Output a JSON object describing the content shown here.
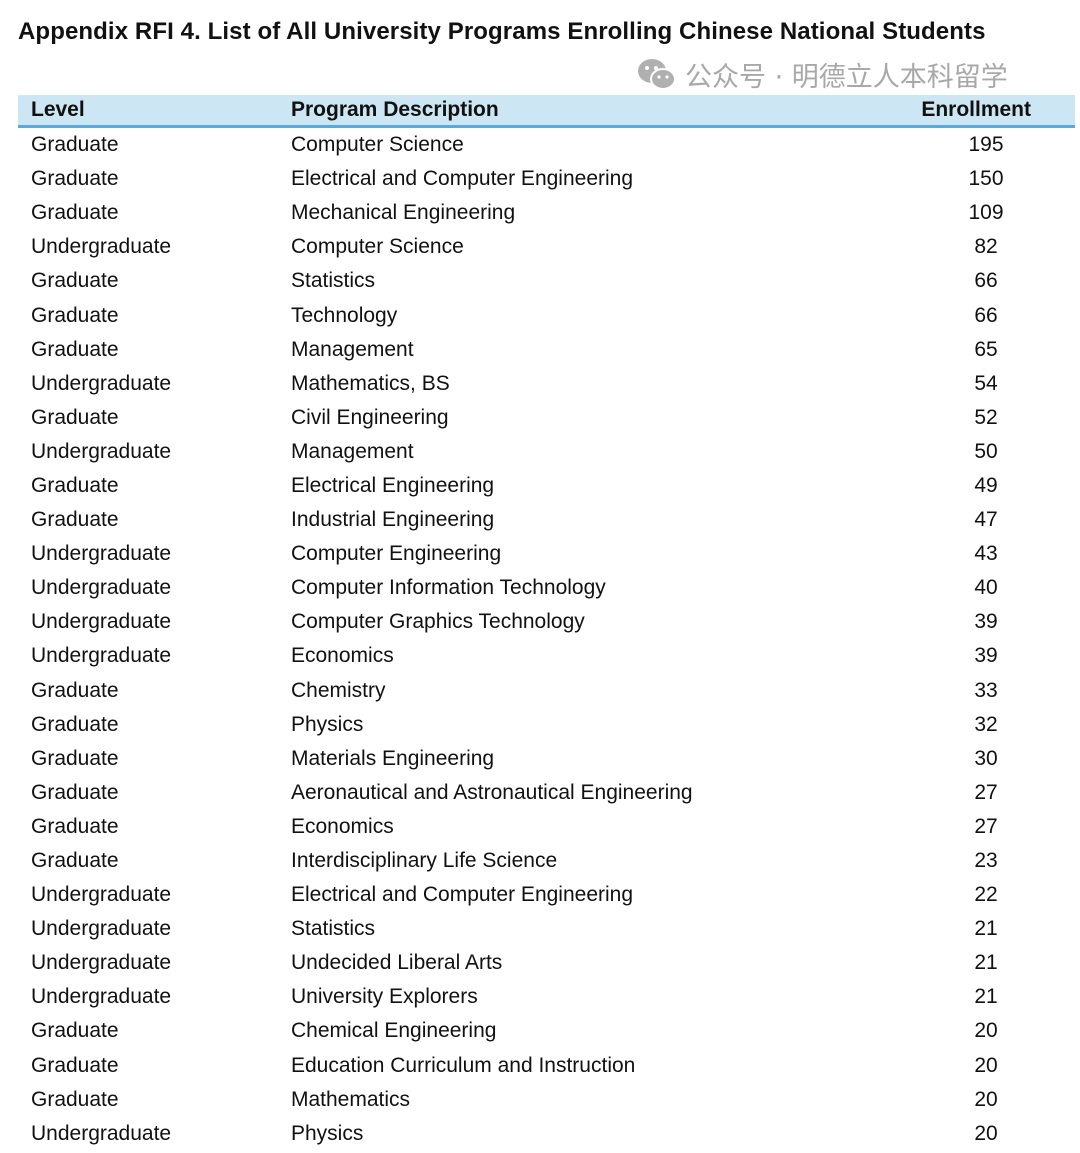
{
  "title": "Appendix RFI 4. List of All University Programs Enrolling Chinese National Students",
  "table": {
    "headers": [
      "Level",
      "Program Description",
      "Enrollment"
    ],
    "rows": [
      [
        "Graduate",
        "Computer Science",
        "195"
      ],
      [
        "Graduate",
        "Electrical and Computer Engineering",
        "150"
      ],
      [
        "Graduate",
        "Mechanical Engineering",
        "109"
      ],
      [
        "Undergraduate",
        "Computer Science",
        "82"
      ],
      [
        "Graduate",
        "Statistics",
        "66"
      ],
      [
        "Graduate",
        "Technology",
        "66"
      ],
      [
        "Graduate",
        "Management",
        "65"
      ],
      [
        "Undergraduate",
        "Mathematics, BS",
        "54"
      ],
      [
        "Graduate",
        "Civil Engineering",
        "52"
      ],
      [
        "Undergraduate",
        "Management",
        "50"
      ],
      [
        "Graduate",
        "Electrical Engineering",
        "49"
      ],
      [
        "Graduate",
        "Industrial Engineering",
        "47"
      ],
      [
        "Undergraduate",
        "Computer Engineering",
        "43"
      ],
      [
        "Undergraduate",
        "Computer Information Technology",
        "40"
      ],
      [
        "Undergraduate",
        "Computer Graphics Technology",
        "39"
      ],
      [
        "Undergraduate",
        "Economics",
        "39"
      ],
      [
        "Graduate",
        "Chemistry",
        "33"
      ],
      [
        "Graduate",
        "Physics",
        "32"
      ],
      [
        "Graduate",
        "Materials Engineering",
        "30"
      ],
      [
        "Graduate",
        "Aeronautical and Astronautical Engineering",
        "27"
      ],
      [
        "Graduate",
        "Economics",
        "27"
      ],
      [
        "Graduate",
        "Interdisciplinary Life Science",
        "23"
      ],
      [
        "Undergraduate",
        "Electrical and Computer Engineering",
        "22"
      ],
      [
        "Undergraduate",
        "Statistics",
        "21"
      ],
      [
        "Undergraduate",
        "Undecided Liberal Arts",
        "21"
      ],
      [
        "Undergraduate",
        "University Explorers",
        "21"
      ],
      [
        "Graduate",
        "Chemical Engineering",
        "20"
      ],
      [
        "Graduate",
        "Education Curriculum and Instruction",
        "20"
      ],
      [
        "Graduate",
        "Mathematics",
        "20"
      ],
      [
        "Undergraduate",
        "Physics",
        "20"
      ]
    ]
  },
  "watermark": {
    "icon": "wechat-icon",
    "text": "公众号 · 明德立人本科留学"
  },
  "colors": {
    "header_bg": "#cce6f4",
    "header_border": "#5ca8dc"
  }
}
